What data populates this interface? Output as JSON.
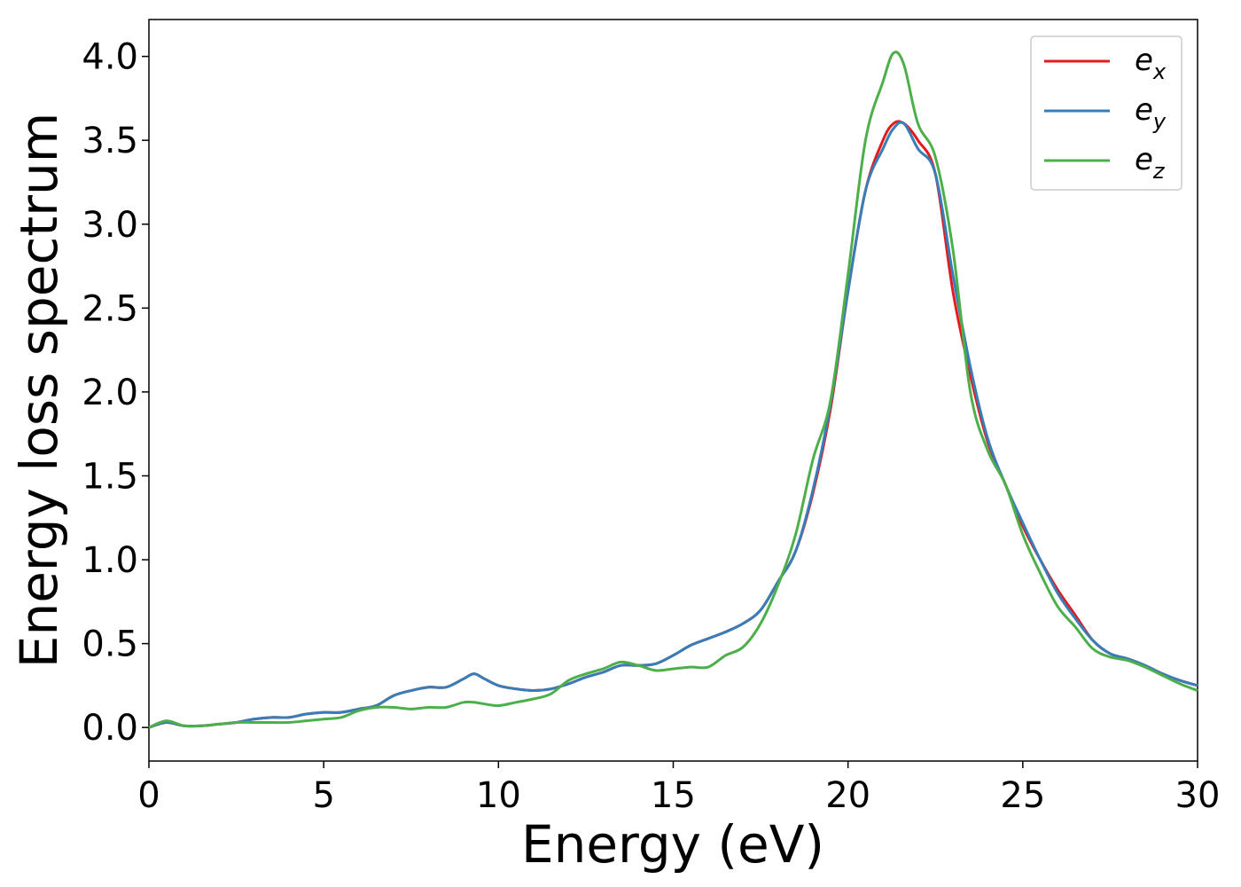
{
  "chart_data": {
    "type": "line",
    "title": "",
    "xlabel": "Energy (eV)",
    "ylabel": "Energy loss spectrum",
    "xlim": [
      0,
      30
    ],
    "ylim": [
      -0.2,
      4.22
    ],
    "xticks": [
      0,
      5,
      10,
      15,
      20,
      25,
      30
    ],
    "yticks": [
      0.0,
      0.5,
      1.0,
      1.5,
      2.0,
      2.5,
      3.0,
      3.5,
      4.0
    ],
    "xtick_labels": [
      "0",
      "5",
      "10",
      "15",
      "20",
      "25",
      "30"
    ],
    "ytick_labels": [
      "0.0",
      "0.5",
      "1.0",
      "1.5",
      "2.0",
      "2.5",
      "3.0",
      "3.5",
      "4.0"
    ],
    "grid": false,
    "legend_position": "top-right",
    "series": [
      {
        "name": "e_x",
        "label_base": "e",
        "label_sub": "x",
        "color": "#e41a1c",
        "x": [
          0,
          0.5,
          1,
          1.5,
          2,
          2.5,
          3,
          3.5,
          4,
          4.5,
          5,
          5.5,
          6,
          6.5,
          7,
          7.5,
          8,
          8.5,
          9,
          9.3,
          9.6,
          10,
          10.5,
          11,
          11.5,
          12,
          12.5,
          13,
          13.5,
          14,
          14.5,
          15,
          15.5,
          16,
          16.5,
          17,
          17.5,
          18,
          18.5,
          19,
          19.5,
          20,
          20.5,
          21,
          21.3,
          21.6,
          22,
          22.5,
          23,
          23.5,
          24,
          24.5,
          25,
          25.5,
          26,
          26.5,
          27,
          27.5,
          28,
          28.5,
          29,
          29.5,
          30
        ],
        "y": [
          0.0,
          0.03,
          0.01,
          0.01,
          0.02,
          0.03,
          0.05,
          0.06,
          0.06,
          0.08,
          0.09,
          0.09,
          0.11,
          0.13,
          0.19,
          0.22,
          0.24,
          0.24,
          0.29,
          0.32,
          0.29,
          0.25,
          0.23,
          0.22,
          0.23,
          0.26,
          0.3,
          0.33,
          0.37,
          0.37,
          0.38,
          0.43,
          0.49,
          0.53,
          0.57,
          0.62,
          0.7,
          0.87,
          1.05,
          1.4,
          1.9,
          2.6,
          3.2,
          3.5,
          3.6,
          3.6,
          3.5,
          3.3,
          2.6,
          2.1,
          1.7,
          1.45,
          1.2,
          1.0,
          0.82,
          0.67,
          0.52,
          0.44,
          0.41,
          0.37,
          0.32,
          0.28,
          0.25
        ]
      },
      {
        "name": "e_y",
        "label_base": "e",
        "label_sub": "y",
        "color": "#377eb8",
        "x": [
          0,
          0.5,
          1,
          1.5,
          2,
          2.5,
          3,
          3.5,
          4,
          4.5,
          5,
          5.5,
          6,
          6.5,
          7,
          7.5,
          8,
          8.5,
          9,
          9.3,
          9.6,
          10,
          10.5,
          11,
          11.5,
          12,
          12.5,
          13,
          13.5,
          14,
          14.5,
          15,
          15.5,
          16,
          16.5,
          17,
          17.5,
          18,
          18.5,
          19,
          19.5,
          20,
          20.5,
          21,
          21.3,
          21.6,
          22,
          22.5,
          23,
          23.5,
          24,
          24.5,
          25,
          25.5,
          26,
          26.5,
          27,
          27.5,
          28,
          28.5,
          29,
          29.5,
          30
        ],
        "y": [
          0.0,
          0.03,
          0.01,
          0.01,
          0.02,
          0.03,
          0.05,
          0.06,
          0.06,
          0.08,
          0.09,
          0.09,
          0.11,
          0.13,
          0.19,
          0.22,
          0.24,
          0.24,
          0.29,
          0.32,
          0.29,
          0.25,
          0.23,
          0.22,
          0.23,
          0.26,
          0.3,
          0.33,
          0.37,
          0.37,
          0.38,
          0.43,
          0.49,
          0.53,
          0.57,
          0.62,
          0.7,
          0.87,
          1.05,
          1.42,
          1.93,
          2.6,
          3.2,
          3.45,
          3.57,
          3.6,
          3.45,
          3.3,
          2.7,
          2.15,
          1.72,
          1.45,
          1.22,
          1.0,
          0.8,
          0.65,
          0.52,
          0.44,
          0.41,
          0.37,
          0.32,
          0.28,
          0.25
        ]
      },
      {
        "name": "e_z",
        "label_base": "e",
        "label_sub": "z",
        "color": "#4daf4a",
        "x": [
          0,
          0.5,
          1,
          1.5,
          2,
          2.5,
          3,
          3.5,
          4,
          4.5,
          5,
          5.5,
          6,
          6.5,
          7,
          7.5,
          8,
          8.5,
          9,
          9.3,
          9.6,
          10,
          10.5,
          11,
          11.5,
          12,
          12.5,
          13,
          13.5,
          14,
          14.5,
          15,
          15.5,
          16,
          16.5,
          17,
          17.5,
          18,
          18.5,
          19,
          19.5,
          20,
          20.5,
          21,
          21.3,
          21.6,
          22,
          22.5,
          23,
          23.5,
          24,
          24.5,
          25,
          25.5,
          26,
          26.5,
          27,
          27.5,
          28,
          28.5,
          29,
          29.5,
          30
        ],
        "y": [
          0.0,
          0.04,
          0.01,
          0.01,
          0.02,
          0.03,
          0.03,
          0.03,
          0.03,
          0.04,
          0.05,
          0.06,
          0.1,
          0.12,
          0.12,
          0.11,
          0.12,
          0.12,
          0.15,
          0.15,
          0.14,
          0.13,
          0.15,
          0.17,
          0.2,
          0.28,
          0.32,
          0.35,
          0.39,
          0.37,
          0.34,
          0.35,
          0.36,
          0.36,
          0.43,
          0.48,
          0.62,
          0.85,
          1.15,
          1.6,
          1.95,
          2.7,
          3.5,
          3.85,
          4.02,
          3.95,
          3.6,
          3.4,
          2.85,
          2.0,
          1.65,
          1.45,
          1.15,
          0.92,
          0.72,
          0.6,
          0.47,
          0.42,
          0.4,
          0.36,
          0.31,
          0.26,
          0.22
        ]
      }
    ]
  }
}
